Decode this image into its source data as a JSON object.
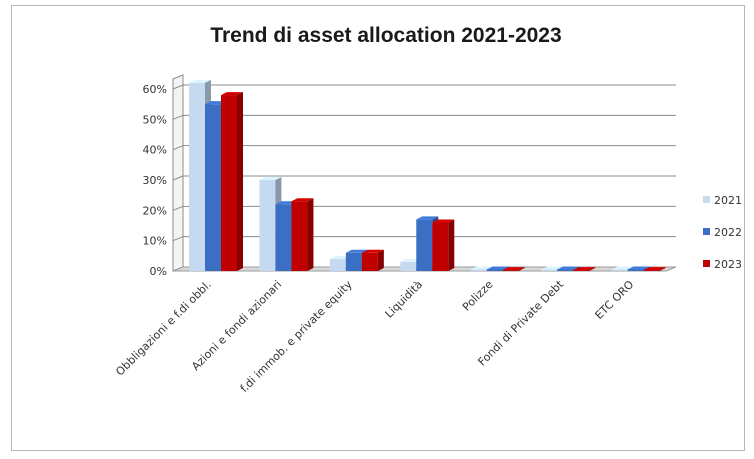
{
  "chart_data": {
    "type": "bar",
    "title": "Trend di asset allocation 2021-2023",
    "xlabel": "",
    "ylabel": "",
    "categories": [
      "Obbligazioni e f.di obbl.",
      "Azioni e fondi azionari",
      "f.di immob. e private equity",
      "Liquidità",
      "Polizze",
      "Fondi di Private Debt",
      "ETC ORO"
    ],
    "series": [
      {
        "name": "2021",
        "color": "#c5d9f1",
        "values": [
          62,
          30,
          4,
          3,
          0.5,
          0.5,
          0.5
        ]
      },
      {
        "name": "2022",
        "color": "#3a6fc4",
        "values": [
          55,
          22,
          6,
          17,
          0.5,
          0.5,
          0.5
        ]
      },
      {
        "name": "2023",
        "color": "#c00000",
        "values": [
          58,
          23,
          6,
          16,
          0.3,
          0.3,
          0.3
        ]
      }
    ],
    "ylim": [
      0,
      60
    ],
    "yticks": [
      "0%",
      "10%",
      "20%",
      "30%",
      "40%",
      "50%",
      "60%"
    ],
    "grid": true,
    "legend": "right",
    "style": "3d-clustered-column"
  }
}
